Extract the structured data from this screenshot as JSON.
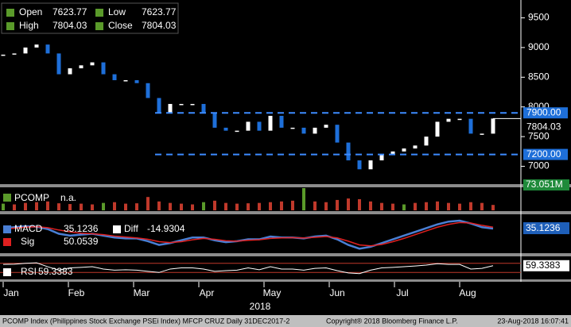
{
  "chart_data": {
    "type": "candlestick",
    "legend": {
      "open_label": "Open",
      "open": 7623.77,
      "low_label": "Low",
      "low": 7623.77,
      "high_label": "High",
      "high": 7804.03,
      "close_label": "Close",
      "close": 7804.03
    },
    "values": [
      8880,
      8900,
      9000,
      9050,
      8900,
      8550,
      8650,
      8700,
      8750,
      8550,
      8450,
      8450,
      8400,
      8150,
      7900,
      8050,
      8050,
      8050,
      7900,
      7650,
      7600,
      7600,
      7750,
      7600,
      7850,
      7650,
      7650,
      7550,
      7650,
      7700,
      7400,
      7100,
      6950,
      7100,
      7200,
      7250,
      7300,
      7350,
      7500,
      7750,
      7800,
      7800,
      7550,
      7550,
      7804.03
    ],
    "up_color": "#ffffff",
    "down_color": "#1e6fd9",
    "ylim": [
      6700,
      9800
    ],
    "yticks": [
      7000,
      7500,
      8000,
      8500,
      9000,
      9500
    ],
    "levels": [
      {
        "value": 7900,
        "label": "7900.00"
      },
      {
        "value": 7200,
        "label": "7200.00"
      }
    ],
    "last_price": 7804.03,
    "volume": {
      "name": "PCOMP",
      "status": "n.a.",
      "value_label": "73.051M",
      "color": "#c0392b",
      "values": [
        90,
        80,
        100,
        110,
        120,
        95,
        85,
        90,
        80,
        100,
        110,
        90,
        95,
        180,
        120,
        100,
        90,
        80,
        110,
        130,
        100,
        90,
        95,
        100,
        110,
        120,
        130,
        300,
        120,
        110,
        140,
        160,
        150,
        120,
        100,
        90,
        80,
        100,
        110,
        120,
        100,
        90,
        110,
        100,
        73.051
      ],
      "ylim": [
        0,
        300
      ]
    },
    "macd": {
      "name": "MACD",
      "value": 35.1236,
      "diff_name": "Diff",
      "diff": -14.9304,
      "color": "#4a7fd4",
      "values": [
        40,
        50,
        60,
        55,
        30,
        -20,
        -40,
        -30,
        -20,
        -40,
        -60,
        -70,
        -70,
        -100,
        -140,
        -120,
        -90,
        -60,
        -60,
        -90,
        -110,
        -100,
        -80,
        -80,
        -50,
        -60,
        -60,
        -70,
        -50,
        -40,
        -80,
        -140,
        -180,
        -160,
        -120,
        -80,
        -40,
        0,
        40,
        80,
        110,
        120,
        90,
        50,
        35.1236
      ],
      "sig_name": "Sig",
      "sig": 50.0539,
      "sig_color": "#e02020",
      "sig_values": [
        30,
        40,
        50,
        55,
        45,
        20,
        0,
        -15,
        -20,
        -30,
        -45,
        -55,
        -65,
        -80,
        -105,
        -115,
        -105,
        -85,
        -70,
        -80,
        -95,
        -100,
        -90,
        -85,
        -70,
        -65,
        -62,
        -66,
        -58,
        -50,
        -65,
        -100,
        -140,
        -150,
        -135,
        -105,
        -70,
        -30,
        10,
        50,
        80,
        100,
        95,
        70,
        50.0539
      ],
      "ylim": [
        -220,
        180
      ]
    },
    "rsi": {
      "name": "RSI",
      "value": 59.3383,
      "color": "#ffffff",
      "values": [
        65,
        66,
        70,
        72,
        55,
        40,
        50,
        52,
        55,
        45,
        40,
        42,
        40,
        35,
        30,
        45,
        50,
        50,
        45,
        35,
        38,
        40,
        50,
        42,
        55,
        45,
        45,
        40,
        48,
        50,
        38,
        28,
        25,
        40,
        50,
        52,
        55,
        58,
        62,
        68,
        65,
        65,
        45,
        48,
        59.3383
      ],
      "ylim": [
        0,
        100
      ],
      "levels": [
        70,
        30
      ]
    },
    "months": [
      "Jan",
      "Feb",
      "Mar",
      "Apr",
      "May",
      "Jun",
      "Jul",
      "Aug"
    ],
    "year": "2018",
    "footer": {
      "left": "PCOMP Index (Philippines Stock Exchange PSEi Index) MFCP CRUZ  Daily 31DEC2017-2",
      "center": "Copyright® 2018 Bloomberg Finance L.P.",
      "right": "23-Aug-2018 16:07:41"
    }
  }
}
